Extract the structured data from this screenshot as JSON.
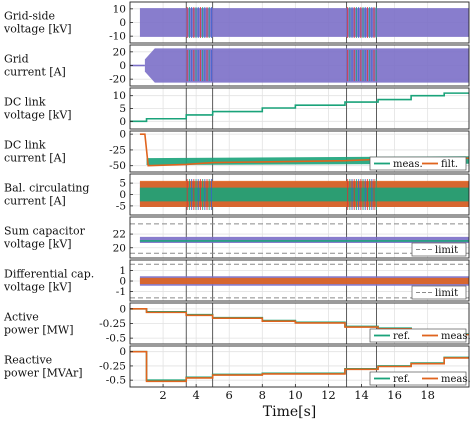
{
  "chart_data": {
    "type": "line",
    "xlabel": "Time[s]",
    "xlim": [
      0,
      20.5
    ],
    "xticks": [
      2,
      4,
      6,
      8,
      10,
      12,
      14,
      16,
      18
    ],
    "highlight_intervals": [
      [
        3.4,
        5.0
      ],
      [
        13.1,
        14.9
      ]
    ],
    "colors": {
      "purple": "#7b6fc8",
      "green": "#1aa37a",
      "orange": "#e0641e",
      "limit": "#8a8a8a",
      "red": "#e03030",
      "blue": "#3a5fd0"
    },
    "panels": [
      {
        "ylabel": [
          "Grid-side",
          "voltage [kV]"
        ],
        "ylim": [
          -15,
          15
        ],
        "yticks": [
          10,
          0,
          -10
        ],
        "series": [
          {
            "style": "band",
            "color": "purple",
            "x": [
              0.6,
              20.5
            ],
            "low": [
              -10.5,
              -10.5
            ],
            "high": [
              10.5,
              10.5
            ]
          }
        ]
      },
      {
        "ylabel": [
          "Grid",
          "current [A]"
        ],
        "ylim": [
          -30,
          30
        ],
        "yticks": [
          20,
          0,
          -20
        ],
        "series": [
          {
            "style": "line",
            "color": "purple",
            "x": [
              0,
              0.9
            ],
            "y": [
              0,
              0
            ]
          },
          {
            "style": "band",
            "color": "purple",
            "x": [
              0.9,
              1.5,
              20.5
            ],
            "low": [
              -9,
              -25,
              -25
            ],
            "high": [
              9,
              25,
              25
            ]
          }
        ]
      },
      {
        "ylabel": [
          "DC link",
          "voltage [kV]"
        ],
        "ylim": [
          -3,
          13
        ],
        "yticks": [
          10,
          5,
          0
        ],
        "series": [
          {
            "style": "line",
            "color": "green",
            "x": [
              0,
              1,
              1,
              3.4,
              3.4,
              5,
              5,
              8,
              8,
              10,
              10,
              13,
              13,
              15,
              15,
              17,
              17,
              19,
              19,
              20.5
            ],
            "y": [
              0,
              0,
              1,
              1,
              2.5,
              2.5,
              3.8,
              3.8,
              5.2,
              5.2,
              6.3,
              6.3,
              7.5,
              7.5,
              8.5,
              8.5,
              10,
              10,
              11,
              11
            ]
          }
        ]
      },
      {
        "ylabel": [
          "DC link",
          "current [A]"
        ],
        "ylim": [
          -60,
          5
        ],
        "yticks": [
          0,
          -25,
          -50
        ],
        "legend": {
          "position": "right",
          "entries": [
            "meas.",
            "filt."
          ]
        },
        "series": [
          {
            "name": "meas.",
            "style": "band",
            "color": "green",
            "x": [
              1,
              20.5
            ],
            "low": [
              -49,
              -47
            ],
            "high": [
              -38,
              -35
            ]
          },
          {
            "name": "filt.",
            "style": "line",
            "color": "orange",
            "x": [
              0.6,
              0.9,
              1.1,
              3.4,
              5,
              8,
              13,
              15,
              20.5
            ],
            "y": [
              0,
              0,
              -50,
              -48,
              -45,
              -44,
              -42,
              -40,
              -38
            ]
          }
        ]
      },
      {
        "ylabel": [
          "Bal. circulating",
          "current [A]"
        ],
        "ylim": [
          -9,
          9
        ],
        "yticks": [
          5,
          0,
          -5
        ],
        "series": [
          {
            "style": "band",
            "color": "purple",
            "x": [
              0.6,
              20.5
            ],
            "low": [
              -5.5,
              -5.5
            ],
            "high": [
              5.5,
              5.5
            ]
          },
          {
            "style": "band",
            "color": "orange",
            "x": [
              0.6,
              20.5
            ],
            "low": [
              -5.5,
              -5.5
            ],
            "high": [
              6,
              6
            ]
          },
          {
            "style": "band",
            "color": "green",
            "x": [
              0.6,
              20.5
            ],
            "low": [
              -3,
              -3
            ],
            "high": [
              3,
              3
            ]
          }
        ]
      },
      {
        "ylabel": [
          "Sum capacitor",
          "voltage [kV]"
        ],
        "ylim": [
          18.5,
          24.5
        ],
        "yticks": [
          22,
          20
        ],
        "legend": {
          "position": "right",
          "entries": [
            "limit"
          ]
        },
        "series": [
          {
            "style": "dashed",
            "color": "limit",
            "x": [
              0,
              20.5
            ],
            "y": [
              23.5,
              23.5
            ]
          },
          {
            "style": "dashed",
            "color": "limit",
            "x": [
              0,
              20.5
            ],
            "y": [
              19.2,
              19.2
            ]
          },
          {
            "style": "band",
            "color": "purple",
            "x": [
              0.6,
              20.5
            ],
            "low": [
              20.7,
              20.7
            ],
            "high": [
              21.6,
              21.6
            ]
          },
          {
            "style": "line",
            "color": "green",
            "x": [
              0.6,
              20.5
            ],
            "y": [
              21,
              21
            ]
          }
        ]
      },
      {
        "ylabel": [
          "Differential cap.",
          "voltage [kV]"
        ],
        "ylim": [
          -1.9,
          2.0
        ],
        "yticks": [
          1,
          0,
          -1
        ],
        "legend": {
          "position": "right",
          "entries": [
            "limit"
          ]
        },
        "series": [
          {
            "style": "dashed",
            "color": "limit",
            "x": [
              0,
              20.5
            ],
            "y": [
              1.6,
              1.6
            ]
          },
          {
            "style": "dashed",
            "color": "limit",
            "x": [
              0,
              20.5
            ],
            "y": [
              -1.6,
              -1.6
            ]
          },
          {
            "style": "band",
            "color": "purple",
            "x": [
              0.6,
              20.5
            ],
            "low": [
              -0.45,
              -0.45
            ],
            "high": [
              0.45,
              0.45
            ]
          },
          {
            "style": "band",
            "color": "orange",
            "x": [
              0.6,
              20.5
            ],
            "low": [
              -0.3,
              -0.3
            ],
            "high": [
              0.3,
              0.3
            ]
          }
        ]
      },
      {
        "ylabel": [
          "Active",
          "power [MW]"
        ],
        "ylim": [
          -0.6,
          0.1
        ],
        "yticks": [
          0,
          -0.25,
          -0.5
        ],
        "legend": {
          "position": "right",
          "entries": [
            "ref.",
            "meas."
          ]
        },
        "series": [
          {
            "name": "ref.",
            "style": "line",
            "color": "green",
            "x": [
              0,
              1,
              1,
              3.4,
              3.4,
              5,
              5,
              8,
              8,
              10,
              10,
              13,
              13,
              15,
              15,
              17,
              17,
              19,
              19,
              20.5
            ],
            "y": [
              0,
              0,
              -0.05,
              -0.05,
              -0.1,
              -0.1,
              -0.15,
              -0.15,
              -0.2,
              -0.2,
              -0.23,
              -0.23,
              -0.3,
              -0.3,
              -0.33,
              -0.33,
              -0.38,
              -0.38,
              -0.43,
              -0.43
            ]
          },
          {
            "name": "meas.",
            "style": "line",
            "color": "orange",
            "x": [
              0,
              1,
              1,
              3.4,
              3.4,
              5,
              5,
              8,
              8,
              10,
              10,
              13,
              13,
              15,
              15,
              17,
              17,
              19,
              19,
              20.5
            ],
            "y": [
              0,
              0,
              -0.06,
              -0.06,
              -0.11,
              -0.11,
              -0.16,
              -0.16,
              -0.21,
              -0.21,
              -0.24,
              -0.24,
              -0.31,
              -0.31,
              -0.34,
              -0.34,
              -0.39,
              -0.39,
              -0.44,
              -0.44
            ]
          }
        ]
      },
      {
        "ylabel": [
          "Reactive",
          "power [MVAr]"
        ],
        "ylim": [
          -0.62,
          0.1
        ],
        "yticks": [
          0,
          -0.25,
          -0.5
        ],
        "legend": {
          "position": "right",
          "entries": [
            "ref.",
            "meas."
          ]
        },
        "series": [
          {
            "name": "ref.",
            "style": "line",
            "color": "green",
            "x": [
              0,
              1,
              1,
              3.4,
              3.4,
              5,
              5,
              8,
              8,
              13,
              13,
              15,
              15,
              17,
              17,
              19,
              19,
              20.5
            ],
            "y": [
              0,
              0,
              -0.5,
              -0.5,
              -0.45,
              -0.45,
              -0.4,
              -0.4,
              -0.38,
              -0.38,
              -0.3,
              -0.3,
              -0.25,
              -0.25,
              -0.2,
              -0.2,
              -0.1,
              -0.1
            ]
          },
          {
            "name": "meas.",
            "style": "line",
            "color": "orange",
            "x": [
              0,
              1,
              1,
              3.4,
              3.4,
              5,
              5,
              8,
              8,
              13,
              13,
              15,
              15,
              17,
              17,
              19,
              19,
              20.5
            ],
            "y": [
              0,
              0,
              -0.52,
              -0.52,
              -0.46,
              -0.46,
              -0.41,
              -0.41,
              -0.39,
              -0.39,
              -0.31,
              -0.31,
              -0.26,
              -0.26,
              -0.21,
              -0.21,
              -0.11,
              -0.11
            ]
          }
        ]
      }
    ]
  }
}
